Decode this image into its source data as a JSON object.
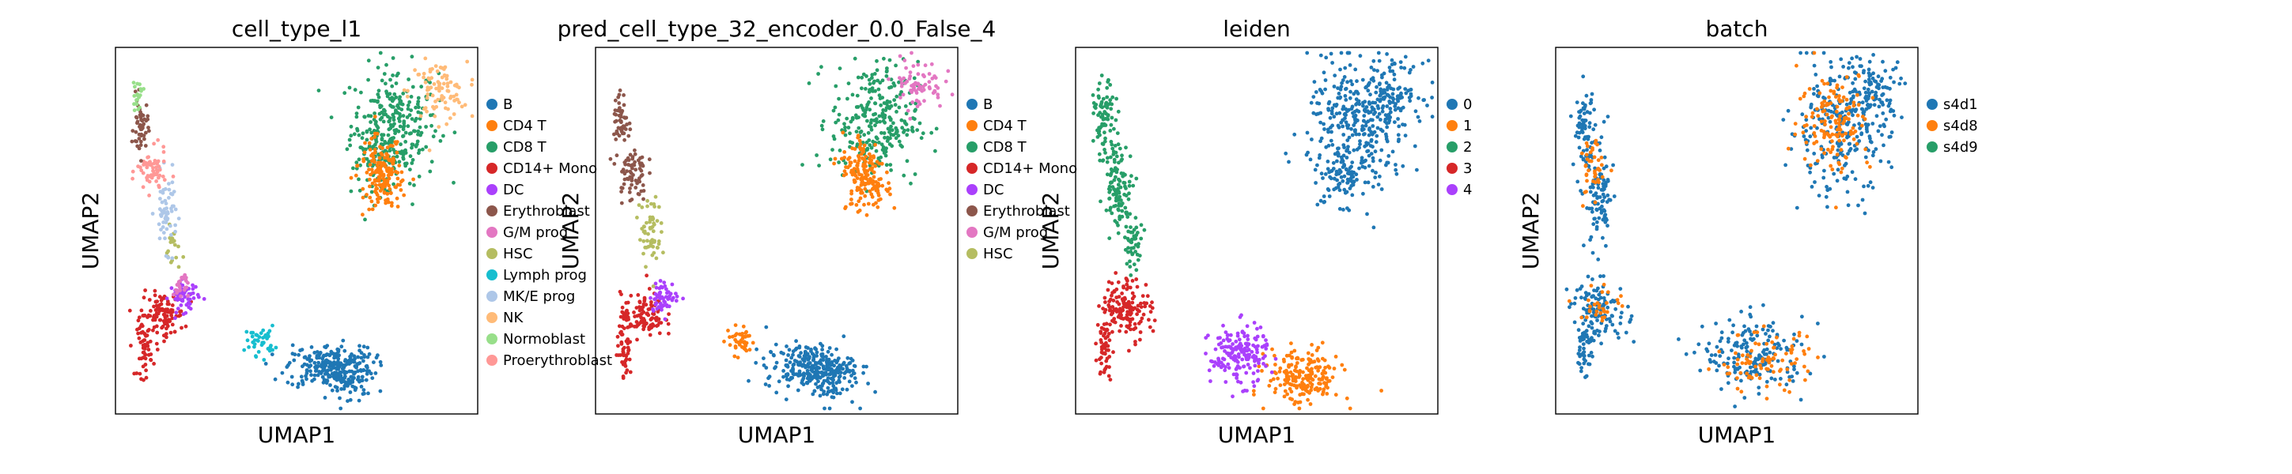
{
  "chart_data": [
    {
      "type": "scatter",
      "title": "cell_type_l1",
      "xlabel": "UMAP1",
      "ylabel": "UMAP2",
      "grid": false,
      "legend_position": "right",
      "legend": [
        {
          "name": "B",
          "color": "#1f77b4"
        },
        {
          "name": "CD4 T",
          "color": "#ff7f0e"
        },
        {
          "name": "CD8 T",
          "color": "#279e68"
        },
        {
          "name": "CD14+ Mono",
          "color": "#d62728"
        },
        {
          "name": "DC",
          "color": "#aa40fc"
        },
        {
          "name": "Erythroblast",
          "color": "#8c564b"
        },
        {
          "name": "G/M prog",
          "color": "#e377c2"
        },
        {
          "name": "HSC",
          "color": "#b5bd61"
        },
        {
          "name": "Lymph prog",
          "color": "#17becf"
        },
        {
          "name": "MK/E prog",
          "color": "#aec7e8"
        },
        {
          "name": "NK",
          "color": "#ffbb78"
        },
        {
          "name": "Normoblast",
          "color": "#98df8a"
        },
        {
          "name": "Proerythroblast",
          "color": "#ff9896"
        }
      ],
      "clusters": [
        {
          "series": 2,
          "x": 0.77,
          "y": 0.79,
          "sx": 0.06,
          "sy": 0.08,
          "n": 260
        },
        {
          "series": 2,
          "x": 0.73,
          "y": 0.7,
          "sx": 0.04,
          "sy": 0.05,
          "n": 80
        },
        {
          "series": 1,
          "x": 0.73,
          "y": 0.68,
          "sx": 0.03,
          "sy": 0.04,
          "n": 90
        },
        {
          "series": 1,
          "x": 0.75,
          "y": 0.62,
          "sx": 0.03,
          "sy": 0.03,
          "n": 80
        },
        {
          "series": 10,
          "x": 0.89,
          "y": 0.88,
          "sx": 0.04,
          "sy": 0.04,
          "n": 90
        },
        {
          "series": 0,
          "x": 0.59,
          "y": 0.13,
          "sx": 0.06,
          "sy": 0.03,
          "n": 220
        },
        {
          "series": 0,
          "x": 0.64,
          "y": 0.1,
          "sx": 0.04,
          "sy": 0.04,
          "n": 90
        },
        {
          "series": 8,
          "x": 0.4,
          "y": 0.2,
          "sx": 0.02,
          "sy": 0.02,
          "n": 40
        },
        {
          "series": 3,
          "x": 0.13,
          "y": 0.27,
          "sx": 0.03,
          "sy": 0.03,
          "n": 110
        },
        {
          "series": 3,
          "x": 0.08,
          "y": 0.18,
          "sx": 0.01,
          "sy": 0.04,
          "n": 50
        },
        {
          "series": 4,
          "x": 0.19,
          "y": 0.32,
          "sx": 0.02,
          "sy": 0.02,
          "n": 60
        },
        {
          "series": 6,
          "x": 0.18,
          "y": 0.35,
          "sx": 0.01,
          "sy": 0.02,
          "n": 25
        },
        {
          "series": 7,
          "x": 0.16,
          "y": 0.45,
          "sx": 0.01,
          "sy": 0.03,
          "n": 20
        },
        {
          "series": 9,
          "x": 0.14,
          "y": 0.55,
          "sx": 0.015,
          "sy": 0.05,
          "n": 60
        },
        {
          "series": 12,
          "x": 0.1,
          "y": 0.66,
          "sx": 0.02,
          "sy": 0.03,
          "n": 60
        },
        {
          "series": 5,
          "x": 0.07,
          "y": 0.78,
          "sx": 0.01,
          "sy": 0.04,
          "n": 50
        },
        {
          "series": 11,
          "x": 0.06,
          "y": 0.87,
          "sx": 0.008,
          "sy": 0.02,
          "n": 20
        }
      ]
    },
    {
      "type": "scatter",
      "title": "pred_cell_type_32_encoder_0.0_False_4",
      "xlabel": "UMAP1",
      "ylabel": "UMAP2",
      "grid": false,
      "legend_position": "right",
      "legend": [
        {
          "name": "B",
          "color": "#1f77b4"
        },
        {
          "name": "CD4 T",
          "color": "#ff7f0e"
        },
        {
          "name": "CD8 T",
          "color": "#279e68"
        },
        {
          "name": "CD14+ Mono",
          "color": "#d62728"
        },
        {
          "name": "DC",
          "color": "#aa40fc"
        },
        {
          "name": "Erythroblast",
          "color": "#8c564b"
        },
        {
          "name": "G/M prog",
          "color": "#e377c2"
        },
        {
          "name": "HSC",
          "color": "#b5bd61"
        }
      ],
      "clusters": [
        {
          "series": 2,
          "x": 0.77,
          "y": 0.8,
          "sx": 0.06,
          "sy": 0.08,
          "n": 280
        },
        {
          "series": 1,
          "x": 0.74,
          "y": 0.67,
          "sx": 0.03,
          "sy": 0.05,
          "n": 110
        },
        {
          "series": 1,
          "x": 0.76,
          "y": 0.62,
          "sx": 0.03,
          "sy": 0.03,
          "n": 60
        },
        {
          "series": 6,
          "x": 0.89,
          "y": 0.9,
          "sx": 0.035,
          "sy": 0.035,
          "n": 70
        },
        {
          "series": 0,
          "x": 0.59,
          "y": 0.13,
          "sx": 0.06,
          "sy": 0.03,
          "n": 220
        },
        {
          "series": 0,
          "x": 0.64,
          "y": 0.1,
          "sx": 0.04,
          "sy": 0.04,
          "n": 90
        },
        {
          "series": 1,
          "x": 0.4,
          "y": 0.2,
          "sx": 0.02,
          "sy": 0.02,
          "n": 40
        },
        {
          "series": 3,
          "x": 0.13,
          "y": 0.27,
          "sx": 0.03,
          "sy": 0.03,
          "n": 110
        },
        {
          "series": 3,
          "x": 0.08,
          "y": 0.18,
          "sx": 0.01,
          "sy": 0.04,
          "n": 50
        },
        {
          "series": 4,
          "x": 0.19,
          "y": 0.32,
          "sx": 0.02,
          "sy": 0.02,
          "n": 60
        },
        {
          "series": 7,
          "x": 0.15,
          "y": 0.5,
          "sx": 0.015,
          "sy": 0.05,
          "n": 60
        },
        {
          "series": 5,
          "x": 0.1,
          "y": 0.66,
          "sx": 0.02,
          "sy": 0.04,
          "n": 70
        },
        {
          "series": 5,
          "x": 0.07,
          "y": 0.8,
          "sx": 0.01,
          "sy": 0.04,
          "n": 50
        }
      ]
    },
    {
      "type": "scatter",
      "title": "leiden",
      "xlabel": "UMAP1",
      "ylabel": "UMAP2",
      "grid": false,
      "legend_position": "right",
      "legend": [
        {
          "name": "0",
          "color": "#1f77b4"
        },
        {
          "name": "1",
          "color": "#ff7f0e"
        },
        {
          "name": "2",
          "color": "#279e68"
        },
        {
          "name": "3",
          "color": "#d62728"
        },
        {
          "name": "4",
          "color": "#aa40fc"
        }
      ],
      "clusters": [
        {
          "series": 0,
          "x": 0.78,
          "y": 0.79,
          "sx": 0.07,
          "sy": 0.09,
          "n": 320
        },
        {
          "series": 0,
          "x": 0.88,
          "y": 0.88,
          "sx": 0.04,
          "sy": 0.04,
          "n": 90
        },
        {
          "series": 0,
          "x": 0.74,
          "y": 0.65,
          "sx": 0.03,
          "sy": 0.04,
          "n": 80
        },
        {
          "series": 1,
          "x": 0.63,
          "y": 0.1,
          "sx": 0.05,
          "sy": 0.04,
          "n": 200
        },
        {
          "series": 4,
          "x": 0.45,
          "y": 0.16,
          "sx": 0.04,
          "sy": 0.04,
          "n": 180
        },
        {
          "series": 2,
          "x": 0.08,
          "y": 0.8,
          "sx": 0.015,
          "sy": 0.05,
          "n": 80
        },
        {
          "series": 2,
          "x": 0.12,
          "y": 0.62,
          "sx": 0.02,
          "sy": 0.06,
          "n": 110
        },
        {
          "series": 2,
          "x": 0.16,
          "y": 0.46,
          "sx": 0.012,
          "sy": 0.03,
          "n": 40
        },
        {
          "series": 3,
          "x": 0.14,
          "y": 0.29,
          "sx": 0.035,
          "sy": 0.04,
          "n": 150
        },
        {
          "series": 3,
          "x": 0.08,
          "y": 0.18,
          "sx": 0.01,
          "sy": 0.04,
          "n": 50
        }
      ]
    },
    {
      "type": "scatter",
      "title": "batch",
      "xlabel": "UMAP1",
      "ylabel": "UMAP2",
      "grid": false,
      "legend_position": "right",
      "legend": [
        {
          "name": "s4d1",
          "color": "#1f77b4"
        },
        {
          "name": "s4d8",
          "color": "#ff7f0e"
        },
        {
          "name": "s4d9",
          "color": "#279e68"
        }
      ],
      "clusters": [
        {
          "series": 0,
          "x": 0.78,
          "y": 0.78,
          "sx": 0.07,
          "sy": 0.09,
          "n": 260
        },
        {
          "series": 0,
          "x": 0.88,
          "y": 0.89,
          "sx": 0.04,
          "sy": 0.04,
          "n": 80
        },
        {
          "series": 1,
          "x": 0.77,
          "y": 0.8,
          "sx": 0.05,
          "sy": 0.07,
          "n": 140
        },
        {
          "series": 0,
          "x": 0.55,
          "y": 0.16,
          "sx": 0.07,
          "sy": 0.05,
          "n": 180
        },
        {
          "series": 1,
          "x": 0.58,
          "y": 0.14,
          "sx": 0.07,
          "sy": 0.04,
          "n": 90
        },
        {
          "series": 0,
          "x": 0.08,
          "y": 0.78,
          "sx": 0.015,
          "sy": 0.05,
          "n": 70
        },
        {
          "series": 0,
          "x": 0.12,
          "y": 0.58,
          "sx": 0.02,
          "sy": 0.07,
          "n": 100
        },
        {
          "series": 1,
          "x": 0.1,
          "y": 0.66,
          "sx": 0.015,
          "sy": 0.05,
          "n": 40
        },
        {
          "series": 0,
          "x": 0.12,
          "y": 0.28,
          "sx": 0.04,
          "sy": 0.04,
          "n": 120
        },
        {
          "series": 1,
          "x": 0.13,
          "y": 0.3,
          "sx": 0.03,
          "sy": 0.03,
          "n": 30
        },
        {
          "series": 0,
          "x": 0.08,
          "y": 0.18,
          "sx": 0.01,
          "sy": 0.04,
          "n": 40
        }
      ]
    }
  ]
}
